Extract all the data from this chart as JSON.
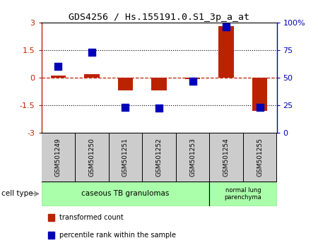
{
  "title": "GDS4256 / Hs.155191.0.S1_3p_a_at",
  "samples": [
    "GSM501249",
    "GSM501250",
    "GSM501251",
    "GSM501252",
    "GSM501253",
    "GSM501254",
    "GSM501255"
  ],
  "transformed_counts": [
    0.1,
    0.2,
    -0.7,
    -0.72,
    -0.1,
    2.82,
    -1.82
  ],
  "blue_y_values": [
    0.6,
    1.38,
    -1.62,
    -1.68,
    -0.22,
    2.76,
    -1.62
  ],
  "ylim_left": [
    -3,
    3
  ],
  "ylim_right": [
    0,
    100
  ],
  "yticks_left": [
    -3,
    -1.5,
    0,
    1.5,
    3
  ],
  "yticks_left_labels": [
    "-3",
    "-1.5",
    "0",
    "1.5",
    "3"
  ],
  "yticks_right": [
    0,
    25,
    50,
    75,
    100
  ],
  "yticks_right_labels": [
    "0",
    "25",
    "50",
    "75",
    "100%"
  ],
  "hline_y": 0,
  "dotted_lines": [
    -1.5,
    1.5
  ],
  "bar_color": "#bb2200",
  "dot_color": "#0000bb",
  "bar_width": 0.45,
  "dot_size": 45,
  "background_color": "#ffffff",
  "cell_type_color": "#aaffaa",
  "sample_box_color": "#cccccc",
  "legend_items": [
    {
      "label": "transformed count",
      "color": "#bb2200"
    },
    {
      "label": "percentile rank within the sample",
      "color": "#0000bb"
    }
  ],
  "group1_span": 5,
  "group2_span": 2,
  "group1_label": "caseous TB granulomas",
  "group2_label": "normal lung\nparenchyma"
}
